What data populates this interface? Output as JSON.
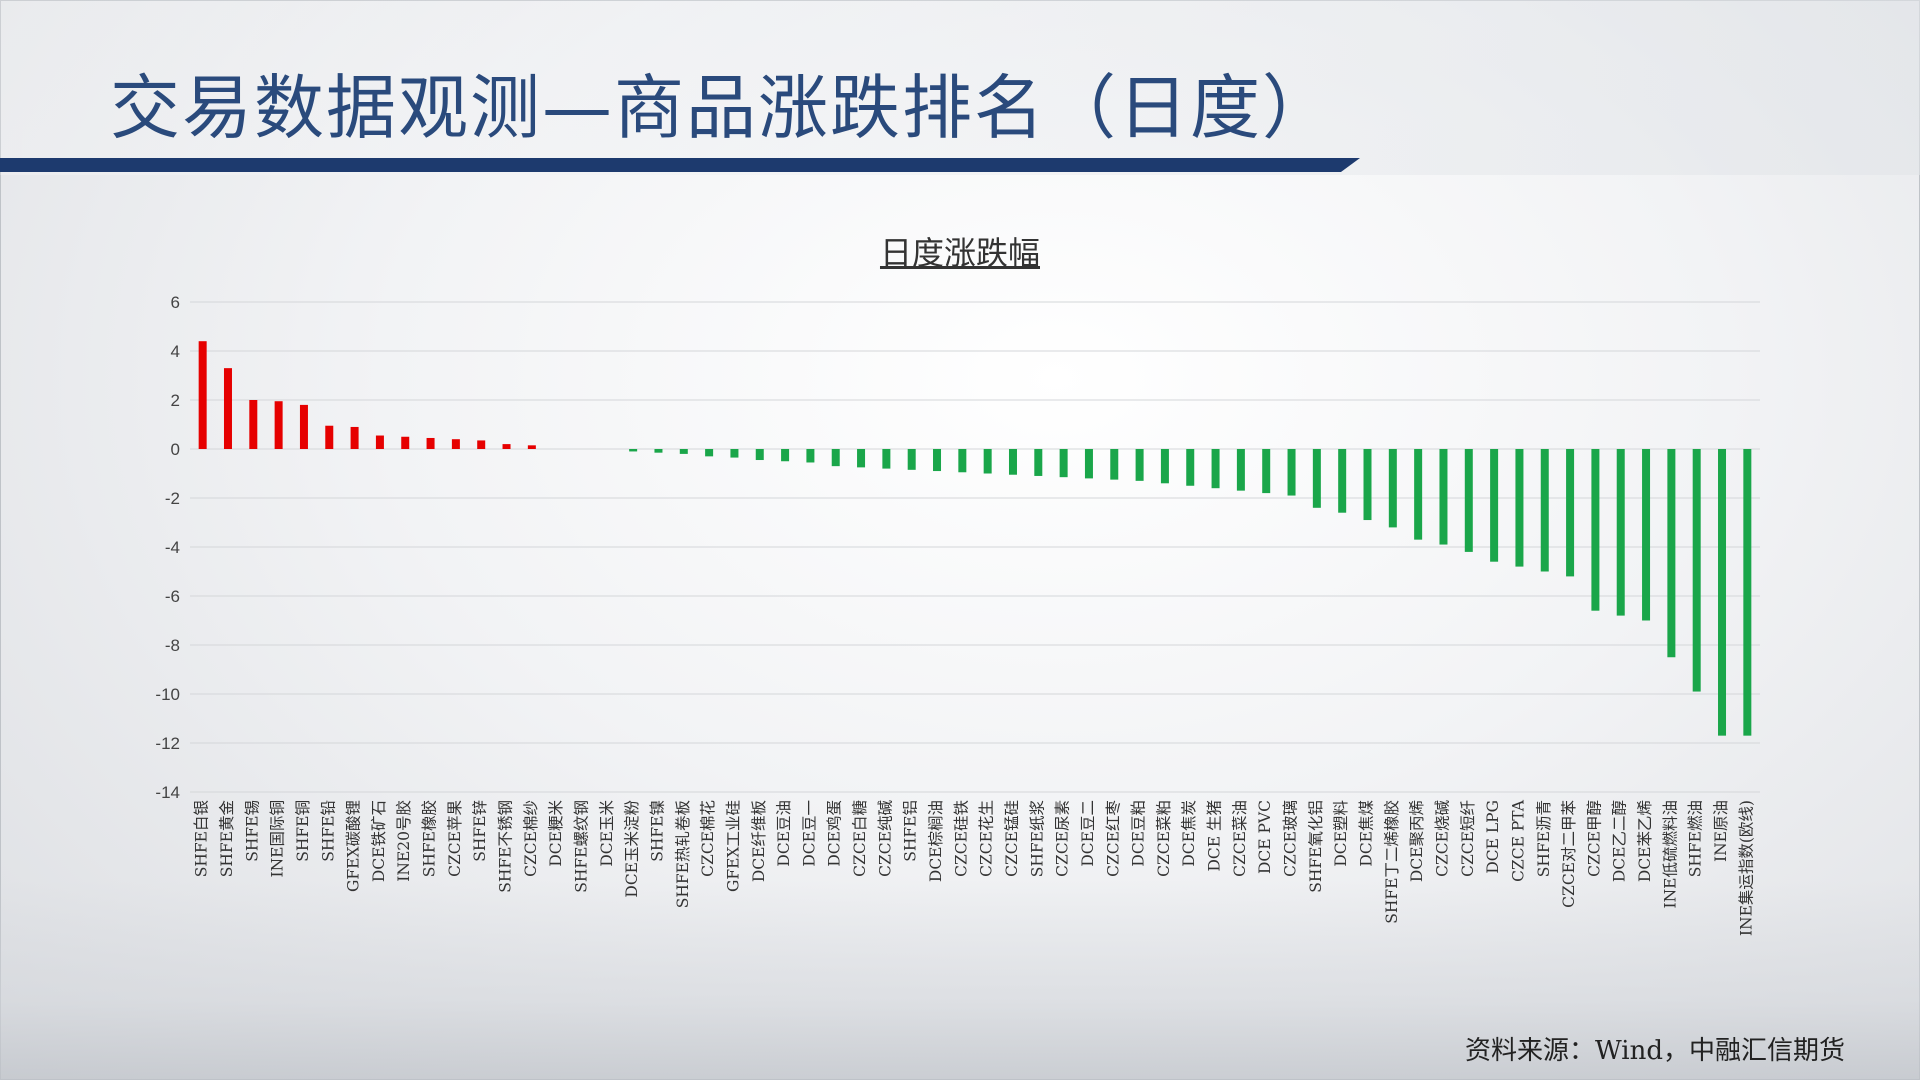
{
  "page": {
    "title": "交易数据观测—商品涨跌排名（日度）",
    "source": "资料来源：Wind，中融汇信期货"
  },
  "colors": {
    "up": "#e60000",
    "down": "#1aa64a",
    "title": "#2a4a7c",
    "rule": "#1d3a6e"
  },
  "chart_data": {
    "type": "bar",
    "title": "日度涨跌幅",
    "ylim": [
      -14,
      6
    ],
    "yticks": [
      6,
      4,
      2,
      0,
      -2,
      -4,
      -6,
      -8,
      -10,
      -12,
      -14
    ],
    "grid": true,
    "categories": [
      "SHFE白银",
      "SHFE黄金",
      "SHFE锡",
      "INE国际铜",
      "SHFE铜",
      "SHFE铅",
      "GFEX碳酸锂",
      "DCE铁矿石",
      "INE20号胶",
      "SHFE橡胶",
      "CZCE苹果",
      "SHFE锌",
      "SHFE不锈钢",
      "CZCE棉纱",
      "DCE粳米",
      "SHFE螺纹钢",
      "DCE玉米",
      "DCE玉米淀粉",
      "SHFE镍",
      "SHFE热轧卷板",
      "CZCE棉花",
      "GFEX工业硅",
      "DCE纤维板",
      "DCE豆油",
      "DCE豆一",
      "DCE鸡蛋",
      "CZCE白糖",
      "CZCE纯碱",
      "SHFE铝",
      "DCE棕榈油",
      "CZCE硅铁",
      "CZCE花生",
      "CZCE锰硅",
      "SHFE纸浆",
      "CZCE尿素",
      "DCE豆二",
      "CZCE红枣",
      "DCE豆粕",
      "CZCE菜粕",
      "DCE焦炭",
      "DCE 生猪",
      "CZCE菜油",
      "DCE PVC",
      "CZCE玻璃",
      "SHFE氧化铝",
      "DCE塑料",
      "DCE焦煤",
      "SHFE丁二烯橡胶",
      "DCE聚丙烯",
      "CZCE烧碱",
      "CZCE短纤",
      "DCE LPG",
      "CZCE PTA",
      "SHFE沥青",
      "CZCE对二甲苯",
      "CZCE甲醇",
      "DCE乙二醇",
      "DCE苯乙烯",
      "INE低硫燃料油",
      "SHFE燃油",
      "INE原油",
      "INE集运指数(欧线)"
    ],
    "values": [
      4.4,
      3.3,
      2.0,
      1.95,
      1.8,
      0.95,
      0.9,
      0.55,
      0.5,
      0.45,
      0.4,
      0.35,
      0.2,
      0.15,
      0.0,
      0.0,
      0.0,
      -0.1,
      -0.15,
      -0.2,
      -0.3,
      -0.35,
      -0.45,
      -0.5,
      -0.55,
      -0.7,
      -0.75,
      -0.8,
      -0.85,
      -0.9,
      -0.95,
      -1.0,
      -1.05,
      -1.1,
      -1.15,
      -1.2,
      -1.25,
      -1.3,
      -1.4,
      -1.5,
      -1.6,
      -1.7,
      -1.8,
      -1.9,
      -2.4,
      -2.6,
      -2.9,
      -3.2,
      -3.7,
      -3.9,
      -4.2,
      -4.6,
      -4.8,
      -5.0,
      -5.2,
      -6.6,
      -6.8,
      -7.0,
      -8.5,
      -9.9,
      -11.7,
      -11.7
    ]
  }
}
